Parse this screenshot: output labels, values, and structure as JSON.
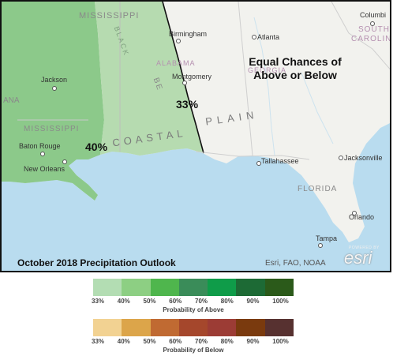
{
  "map": {
    "main_label_line1": "Equal Chances of",
    "main_label_line2": "Above or Below",
    "pct_33": "33%",
    "pct_40": "40%",
    "caption": "October 2018 Precipitation Outlook",
    "attribution": "Esri, FAO, NOAA",
    "esri_logo_top": "POWERED BY",
    "esri_logo": "esri",
    "places": {
      "mississippi_top": "MISSISSIPPI",
      "black": "BLACK",
      "be": "BE",
      "alabama": "ALABAMA",
      "georgia": "GEORGIA",
      "coastal": "COASTAL",
      "plain": "PLAIN",
      "na": "ANA",
      "mississippi": "MISSISSIPPI",
      "florida": "FLORIDA",
      "south": "SOUTH",
      "carolina": "CAROLINA",
      "birmingham": "Birmingham",
      "atlanta": "Atlanta",
      "columbia": "Columbi",
      "montgomery": "Montgomery",
      "jackson": "Jackson",
      "baton_rouge": "Baton Rouge",
      "new_orleans": "New Orleans",
      "tallahassee": "Tallahassee",
      "jacksonville": "Jacksonville",
      "orlando": "Orlando",
      "tampa": "Tampa"
    },
    "colors": {
      "ocean": "#b9dcef",
      "land": "#f2f2ee",
      "zone_40": "#8cc98a",
      "zone_33": "#b6dbb0"
    }
  },
  "legend_above": {
    "title": "Probability of Above",
    "ticks": [
      "33%",
      "40%",
      "50%",
      "60%",
      "70%",
      "80%",
      "90%",
      "100%"
    ],
    "colors": [
      "#b3ddb3",
      "#8dcf83",
      "#4fb64d",
      "#3a8c59",
      "#0f9c49",
      "#1d6a35",
      "#2b5a1a"
    ]
  },
  "legend_below": {
    "title": "Probability of Below",
    "ticks": [
      "33%",
      "40%",
      "50%",
      "60%",
      "70%",
      "80%",
      "90%",
      "100%"
    ],
    "colors": [
      "#f2d292",
      "#dca54a",
      "#c06a32",
      "#a5472c",
      "#9c3c35",
      "#7a3a0e",
      "#573130"
    ]
  }
}
